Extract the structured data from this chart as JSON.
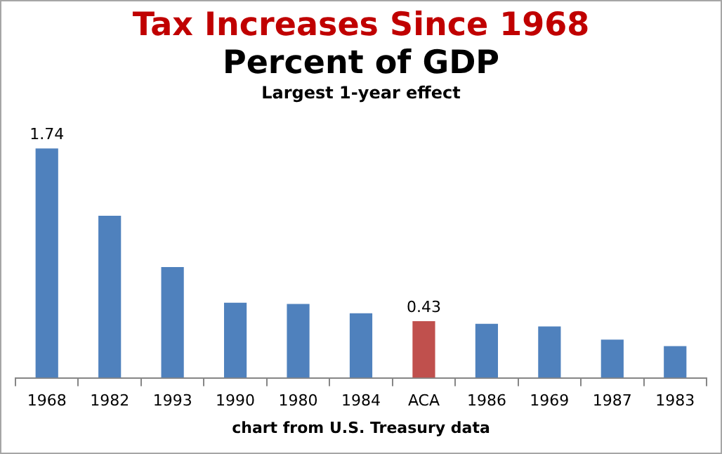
{
  "chart_data": {
    "type": "bar",
    "title": "Tax Increases Since 1968",
    "subtitle": "Percent of GDP",
    "annotations": [
      "Largest 1-year effect",
      "chart from U.S. Treasury data"
    ],
    "categories": [
      "1968",
      "1982",
      "1993",
      "1990",
      "1980",
      "1984",
      "ACA",
      "1986",
      "1969",
      "1987",
      "1983"
    ],
    "values": [
      1.74,
      1.23,
      0.84,
      0.57,
      0.56,
      0.49,
      0.43,
      0.41,
      0.39,
      0.29,
      0.24
    ],
    "value_labels": [
      "1.74",
      null,
      null,
      null,
      null,
      null,
      "0.43",
      null,
      null,
      null,
      null
    ],
    "colors": [
      "#4f81bd",
      "#4f81bd",
      "#4f81bd",
      "#4f81bd",
      "#4f81bd",
      "#4f81bd",
      "#c0504d",
      "#4f81bd",
      "#4f81bd",
      "#4f81bd",
      "#4f81bd"
    ],
    "tick_labels": "x",
    "grid": false,
    "legend": false
  }
}
